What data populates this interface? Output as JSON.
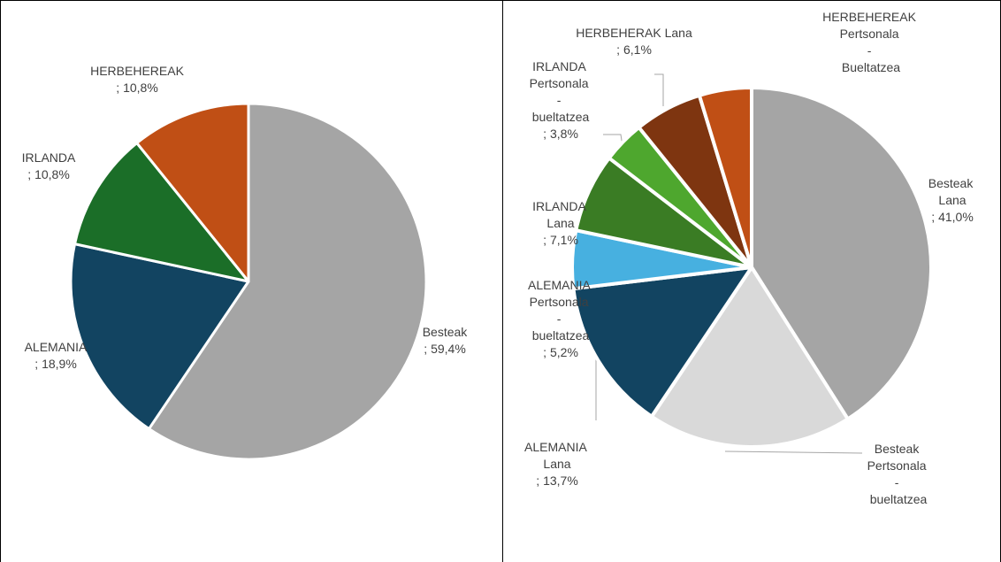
{
  "chart_data": [
    {
      "type": "pie",
      "label_separator": ";",
      "categories": [
        "Besteak",
        "ALEMANIA",
        "IRLANDA",
        "HERBEHEREAK"
      ],
      "values": [
        59.4,
        18.9,
        10.8,
        10.8
      ],
      "value_labels": [
        "59,4%",
        "18,9%",
        "10,8%",
        "10,8%"
      ],
      "colors": [
        "#a5a5a5",
        "#124461",
        "#1b6e28",
        "#c04f15"
      ]
    },
    {
      "type": "pie",
      "label_separator": ";",
      "categories": [
        "Besteak Lana",
        "Besteak Pertsonala - bueltatzea",
        "ALEMANIA Lana",
        "ALEMANIA Pertsonala - bueltatzea",
        "IRLANDA Lana",
        "IRLANDA Pertsonala - bueltatzea",
        "HERBEHERAK Lana",
        "HERBEHEREAK Pertsonala - Bueltatzea"
      ],
      "values": [
        41.0,
        18.4,
        13.7,
        5.2,
        7.1,
        3.8,
        6.1,
        4.7
      ],
      "value_labels": [
        "41,0%",
        null,
        "13,7%",
        "5,2%",
        "7,1%",
        "3,8%",
        "6,1%",
        null
      ],
      "colors": [
        "#a5a5a5",
        "#d9d9d9",
        "#124461",
        "#47b0e0",
        "#3a7c24",
        "#4ea72e",
        "#7e3510",
        "#c04f15"
      ]
    }
  ]
}
